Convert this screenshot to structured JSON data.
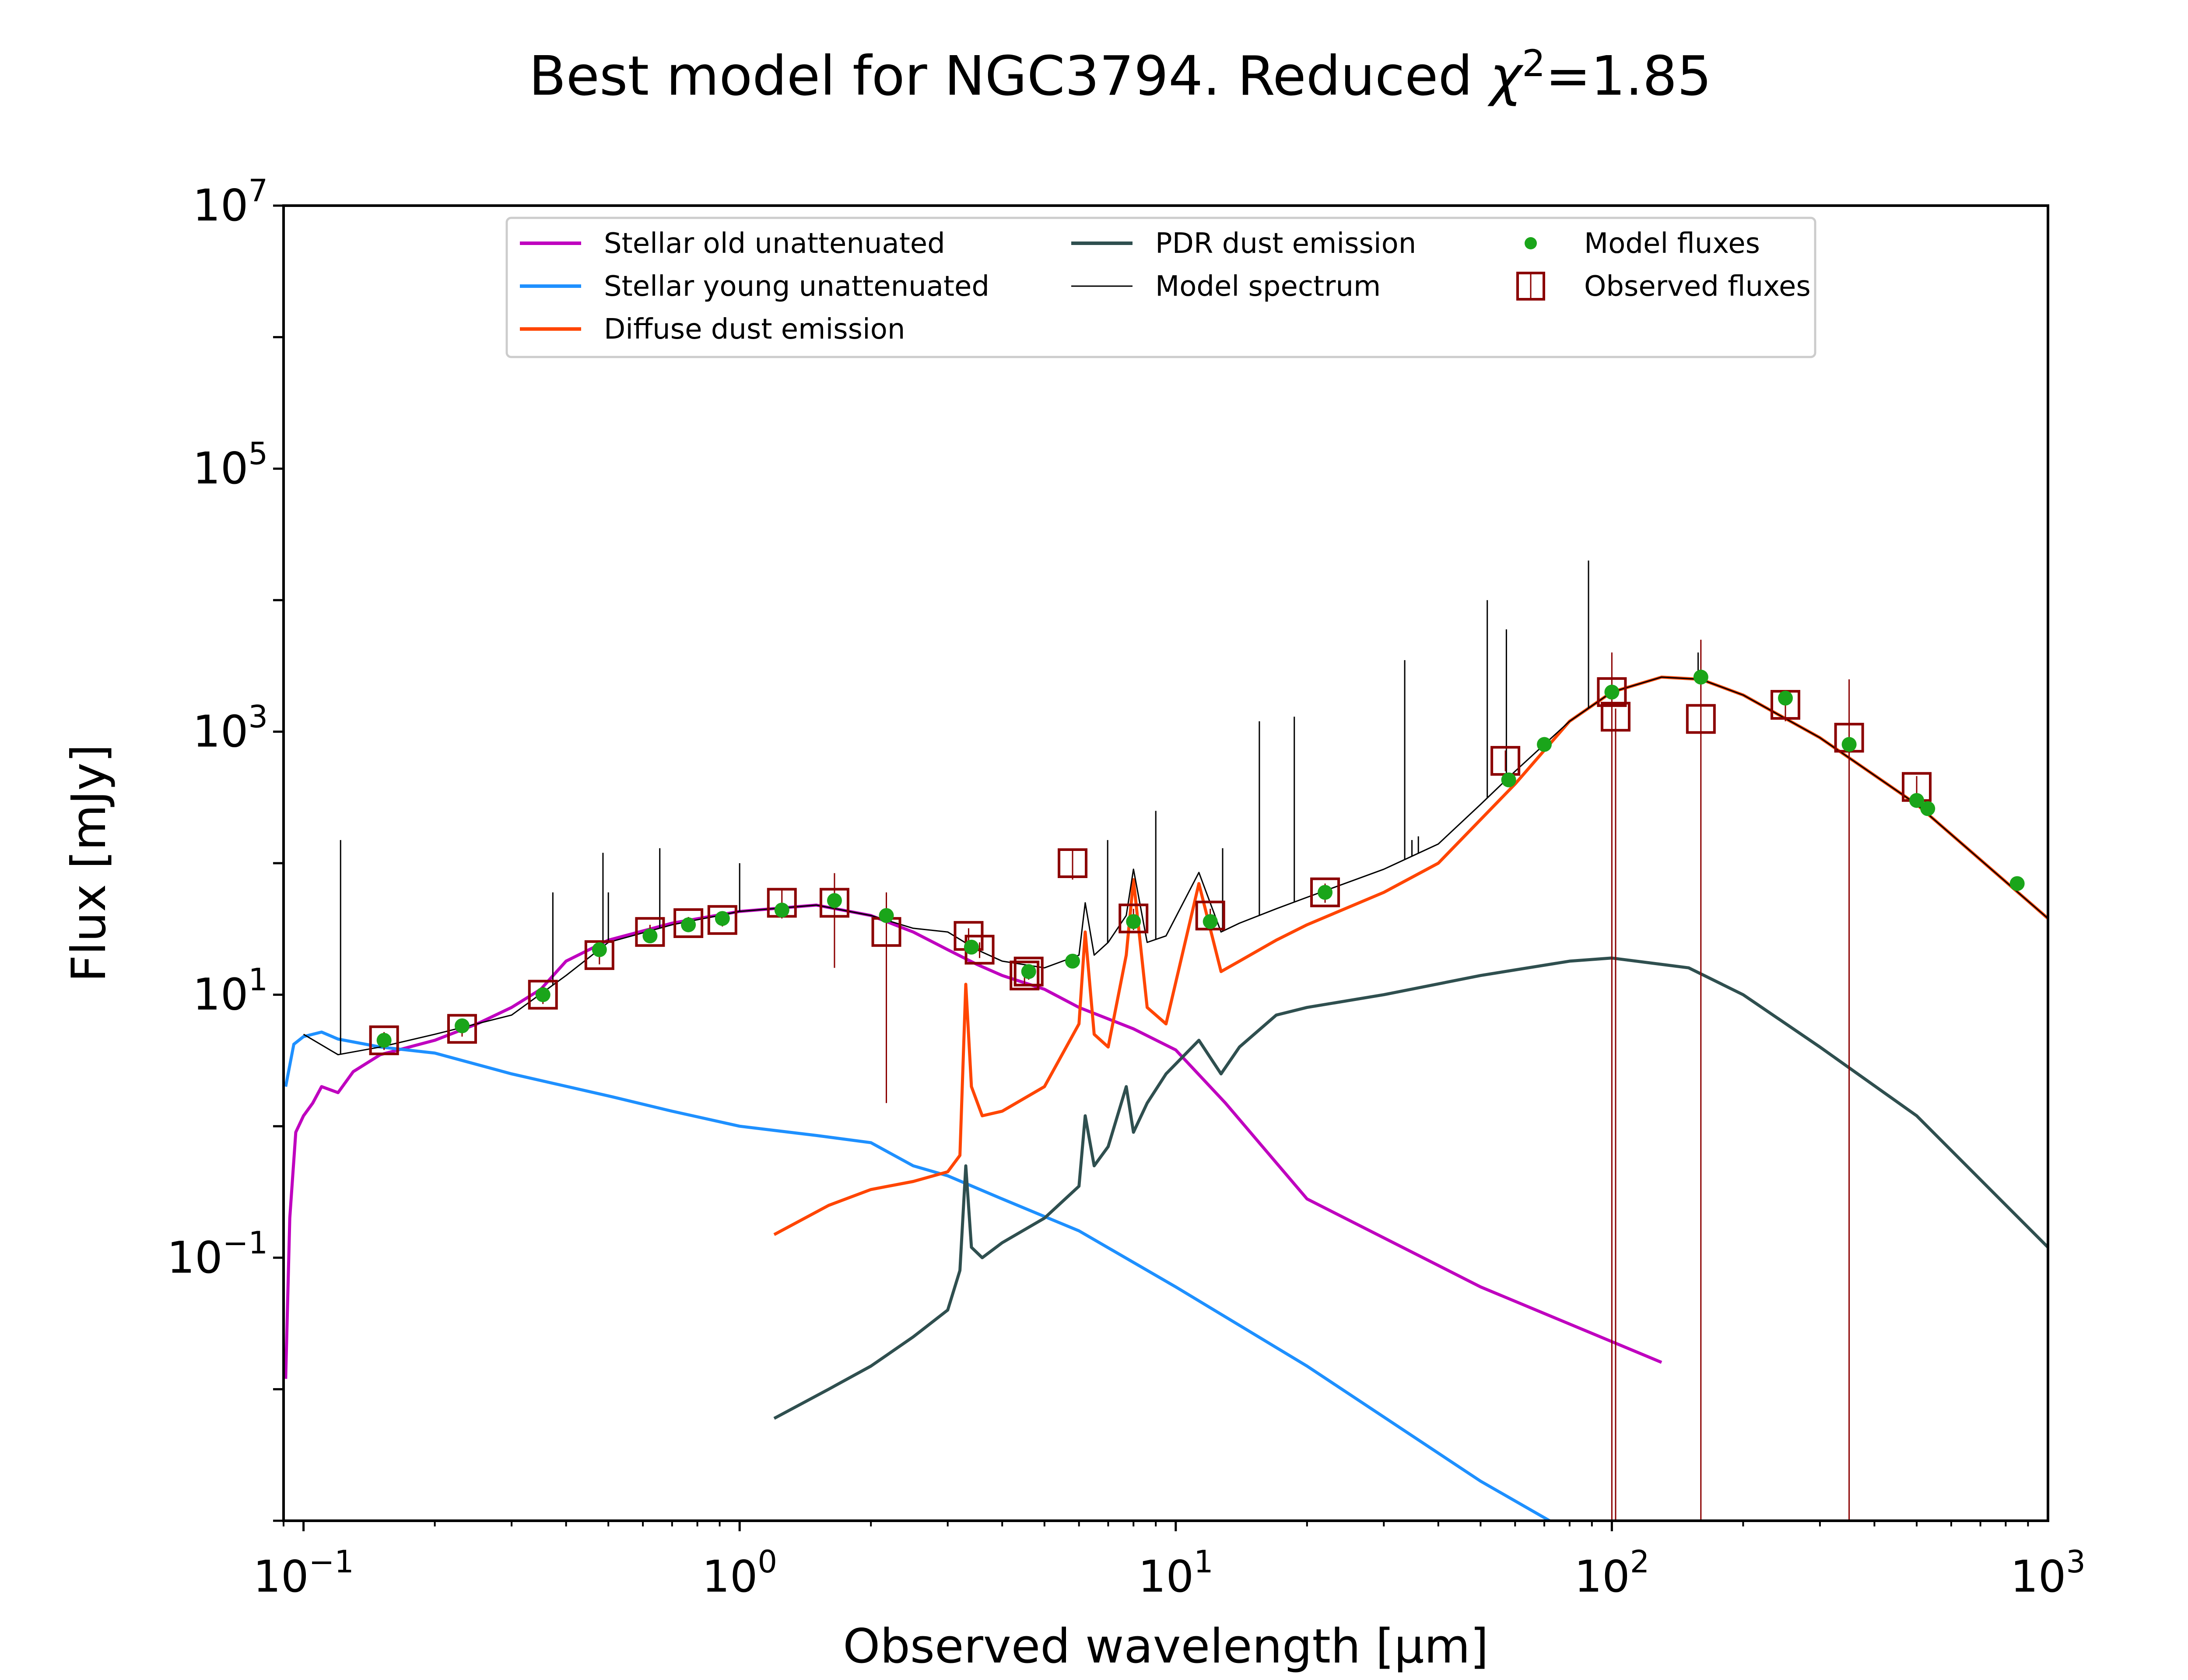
{
  "chart_data": {
    "type": "line",
    "title_main": "Best model for NGC3794. Reduced ",
    "title_chi": "χ",
    "title_exp": "2",
    "title_value": "=1.85",
    "xlabel": "Observed wavelength [μm]",
    "ylabel": "Flux [mJy]",
    "xscale": "log",
    "yscale": "log",
    "xlim": [
      0.09,
      1000
    ],
    "ylim": [
      0.001,
      10000000
    ],
    "x_ticks": [
      {
        "value": 0.1,
        "base": "10",
        "exp": "−1"
      },
      {
        "value": 1,
        "base": "10",
        "exp": "0"
      },
      {
        "value": 10,
        "base": "10",
        "exp": "1"
      },
      {
        "value": 100,
        "base": "10",
        "exp": "2"
      },
      {
        "value": 1000,
        "base": "10",
        "exp": "3"
      }
    ],
    "y_ticks": [
      {
        "value": 0.1,
        "base": "10",
        "exp": "−1"
      },
      {
        "value": 10,
        "base": "10",
        "exp": "1"
      },
      {
        "value": 1000,
        "base": "10",
        "exp": "3"
      },
      {
        "value": 100000,
        "base": "10",
        "exp": "5"
      },
      {
        "value": 10000000,
        "base": "10",
        "exp": "7"
      }
    ],
    "grid": false,
    "legend_position": "top-center",
    "legend": [
      {
        "label": "Stellar old unattenuated",
        "color": "#bf00bf",
        "kind": "line"
      },
      {
        "label": "Stellar young unattenuated",
        "color": "#1e90ff",
        "kind": "line"
      },
      {
        "label": "Diffuse dust emission",
        "color": "#ff4500",
        "kind": "line"
      },
      {
        "label": "PDR dust emission",
        "color": "#2f4f4f",
        "kind": "line"
      },
      {
        "label": "Model spectrum",
        "color": "#000000",
        "kind": "thin-line"
      },
      {
        "label": "Model fluxes",
        "color": "#1aa51a",
        "kind": "dot"
      },
      {
        "label": "Observed fluxes",
        "color": "#8b0000",
        "kind": "square"
      }
    ],
    "series": [
      {
        "name": "Stellar old unattenuated",
        "color": "#bf00bf",
        "width": 7,
        "x": [
          0.091,
          0.093,
          0.096,
          0.1,
          0.105,
          0.11,
          0.12,
          0.13,
          0.15,
          0.2,
          0.25,
          0.3,
          0.35,
          0.4,
          0.5,
          0.7,
          1.0,
          1.5,
          2.0,
          2.5,
          3.0,
          3.5,
          4.0,
          5.0,
          6.0,
          8.0,
          10,
          13,
          20,
          50,
          130
        ],
        "y": [
          0.012,
          0.2,
          0.9,
          1.2,
          1.5,
          2.0,
          1.8,
          2.6,
          3.5,
          4.5,
          6.0,
          8.0,
          11,
          18,
          26,
          35,
          43,
          48,
          40,
          30,
          22,
          17,
          14,
          11,
          8,
          5.5,
          3.8,
          1.5,
          0.28,
          0.06,
          0.016
        ]
      },
      {
        "name": "Stellar young unattenuated",
        "color": "#1e90ff",
        "width": 7,
        "x": [
          0.091,
          0.095,
          0.1,
          0.11,
          0.12,
          0.15,
          0.2,
          0.3,
          0.5,
          0.7,
          1.0,
          1.5,
          2.0,
          2.5,
          3.0,
          4.0,
          6.0,
          10,
          20,
          50,
          72
        ],
        "y": [
          2.0,
          4.2,
          4.8,
          5.2,
          4.6,
          4.0,
          3.6,
          2.5,
          1.7,
          1.3,
          1.0,
          0.85,
          0.75,
          0.5,
          0.42,
          0.28,
          0.16,
          0.06,
          0.015,
          0.002,
          0.001
        ]
      },
      {
        "name": "Diffuse dust emission",
        "color": "#ff4500",
        "width": 7,
        "x": [
          1.2,
          1.6,
          2.0,
          2.5,
          3.0,
          3.2,
          3.3,
          3.4,
          3.6,
          4.0,
          5.0,
          6.0,
          6.2,
          6.5,
          7.0,
          7.7,
          8.0,
          8.6,
          9.5,
          11.3,
          12.7,
          14,
          17,
          20,
          30,
          40,
          60,
          80,
          100,
          130,
          160,
          200,
          300,
          500,
          1000
        ],
        "y": [
          0.15,
          0.25,
          0.33,
          0.38,
          0.45,
          0.6,
          12,
          2.0,
          1.2,
          1.3,
          2.0,
          6.0,
          30,
          5.0,
          4.0,
          20,
          75,
          8.0,
          6.0,
          70,
          15,
          18,
          26,
          34,
          60,
          100,
          400,
          1200,
          2000,
          2600,
          2500,
          1900,
          900,
          280,
          38
        ]
      },
      {
        "name": "PDR dust emission",
        "color": "#2f4f4f",
        "width": 7,
        "x": [
          1.2,
          1.6,
          2.0,
          2.5,
          3.0,
          3.2,
          3.3,
          3.4,
          3.6,
          4.0,
          5.0,
          6.0,
          6.2,
          6.5,
          7.0,
          7.7,
          8.0,
          8.6,
          9.5,
          11.3,
          12.7,
          14,
          17,
          20,
          30,
          50,
          80,
          100,
          150,
          200,
          300,
          500,
          1000
        ],
        "y": [
          0.006,
          0.01,
          0.015,
          0.025,
          0.04,
          0.08,
          0.5,
          0.12,
          0.1,
          0.13,
          0.2,
          0.35,
          1.2,
          0.5,
          0.7,
          2.0,
          0.9,
          1.5,
          2.5,
          4.5,
          2.5,
          4.0,
          7.0,
          8.0,
          10,
          14,
          18,
          19,
          16,
          10,
          4.0,
          1.2,
          0.12
        ]
      },
      {
        "name": "Model spectrum",
        "color": "#000000",
        "width": 3,
        "x": [
          0.1,
          0.12,
          0.15,
          0.2,
          0.3,
          0.4,
          0.5,
          0.7,
          1.0,
          1.5,
          2.0,
          2.5,
          3.0,
          3.5,
          4.0,
          5.0,
          6.0,
          6.2,
          6.5,
          7.0,
          7.7,
          8.0,
          8.6,
          9.5,
          11.3,
          12.7,
          14,
          17,
          20,
          30,
          40,
          50,
          60,
          80,
          100,
          130,
          160,
          200,
          300,
          500,
          1000
        ],
        "y": [
          5.0,
          3.5,
          4.0,
          5.0,
          7.0,
          14,
          25,
          34,
          43,
          48,
          40,
          32,
          30,
          22,
          18,
          16,
          20,
          50,
          20,
          25,
          40,
          90,
          25,
          28,
          85,
          30,
          35,
          45,
          55,
          90,
          140,
          280,
          500,
          1200,
          2000,
          2600,
          2500,
          1900,
          900,
          280,
          38
        ]
      }
    ],
    "emission_lines": [
      {
        "x": 0.1216,
        "y": 150
      },
      {
        "x": 0.373,
        "y": 60
      },
      {
        "x": 0.486,
        "y": 120
      },
      {
        "x": 0.5,
        "y": 60
      },
      {
        "x": 0.656,
        "y": 130
      },
      {
        "x": 1.0,
        "y": 100
      },
      {
        "x": 6.98,
        "y": 150
      },
      {
        "x": 9.0,
        "y": 250
      },
      {
        "x": 12.81,
        "y": 130
      },
      {
        "x": 15.55,
        "y": 1200
      },
      {
        "x": 18.7,
        "y": 1300
      },
      {
        "x": 33.5,
        "y": 3500
      },
      {
        "x": 34.8,
        "y": 150
      },
      {
        "x": 36.0,
        "y": 160
      },
      {
        "x": 51.8,
        "y": 10000
      },
      {
        "x": 57.3,
        "y": 6000
      },
      {
        "x": 88.4,
        "y": 20000
      },
      {
        "x": 157.7,
        "y": 4000
      }
    ],
    "model_fluxes": {
      "x": [
        0.153,
        0.231,
        0.354,
        0.477,
        0.623,
        0.763,
        0.913,
        1.25,
        1.65,
        2.17,
        3.4,
        4.6,
        5.8,
        8.0,
        12,
        22,
        58,
        70,
        100,
        160,
        250,
        350,
        500,
        530,
        850
      ],
      "y": [
        4.5,
        5.8,
        10,
        22,
        28,
        34,
        38,
        44,
        52,
        40,
        23,
        15,
        18,
        36,
        36,
        60,
        430,
        800,
        2000,
        2600,
        1800,
        800,
        300,
        260,
        70
      ]
    },
    "observed_fluxes": {
      "x": [
        0.153,
        0.231,
        0.354,
        0.477,
        0.623,
        0.763,
        0.913,
        1.25,
        1.65,
        2.17,
        3.35,
        3.55,
        4.5,
        4.6,
        5.8,
        8.0,
        12,
        22,
        57,
        100,
        102,
        160,
        250,
        350,
        500
      ],
      "y": [
        4.5,
        5.5,
        10,
        20,
        30,
        35,
        37,
        50,
        50,
        30,
        28,
        22,
        14,
        15,
        100,
        38,
        40,
        60,
        600,
        2000,
        1300,
        1250,
        1600,
        900,
        380
      ],
      "err_lo": [
        3.8,
        4.8,
        8.5,
        17,
        26,
        31,
        33,
        38,
        16,
        1.5,
        24,
        19,
        12,
        13,
        75,
        31,
        35,
        50,
        500,
        0.001,
        0.001,
        0.001,
        1200,
        0.001,
        300
      ],
      "err_hi": [
        5.2,
        6.2,
        11.5,
        24,
        34,
        39,
        41,
        62,
        84,
        60,
        32,
        25,
        16,
        17,
        125,
        45,
        45,
        70,
        720,
        4000,
        1500,
        5000,
        2000,
        2500,
        460
      ]
    }
  }
}
